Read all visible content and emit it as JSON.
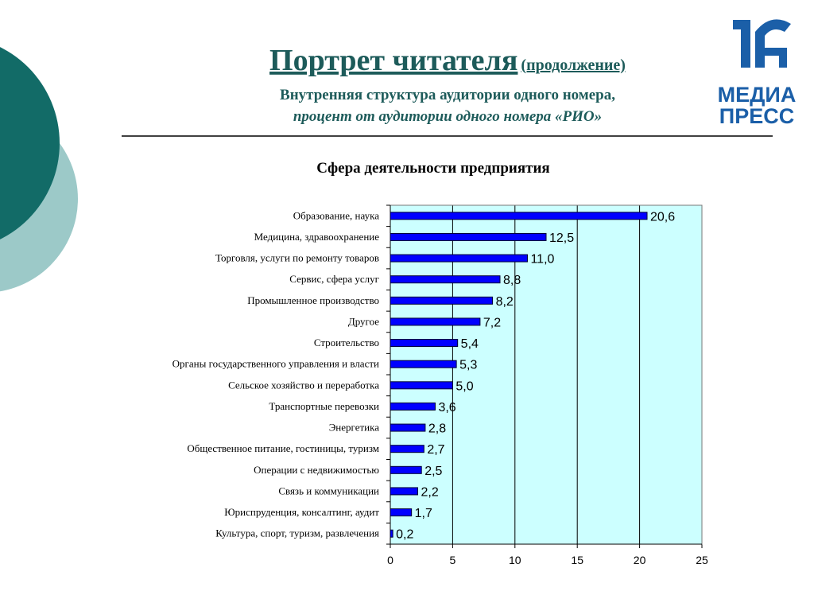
{
  "header": {
    "title": "Портрет читателя",
    "title_note": "(продолжение)",
    "subtitle": "Внутренняя структура аудитории одного номера,",
    "subtitle_2": "процент от аудитории одного номера «РИО»"
  },
  "logo": {
    "line_1": "МЕДИА",
    "line_2": "ПРЕСС"
  },
  "chart_data": {
    "type": "bar",
    "orientation": "horizontal",
    "title": "Сфера деятельности предприятия",
    "categories": [
      "Образование, наука",
      "Медицина, здравоохранение",
      "Торговля, услуги по ремонту товаров",
      "Сервис, сфера услуг",
      "Промышленное производство",
      "Другое",
      "Строительство",
      "Органы государственного управления и власти",
      "Сельское хозяйство и переработка",
      "Транспортные перевозки",
      "Энергетика",
      "Общественное питание, гостиницы, туризм",
      "Операции с недвижимостью",
      "Связь и коммуникации",
      "Юриспруденция, консалтинг, аудит",
      "Культура, спорт, туризм, развлечения"
    ],
    "values": [
      20.6,
      12.5,
      11.0,
      8.8,
      8.2,
      7.2,
      5.4,
      5.3,
      5.0,
      3.6,
      2.8,
      2.7,
      2.5,
      2.2,
      1.7,
      0.2
    ],
    "value_labels": [
      "20,6",
      "12,5",
      "11,0",
      "8,8",
      "8,2",
      "7,2",
      "5,4",
      "5,3",
      "5,0",
      "3,6",
      "2,8",
      "2,7",
      "2,5",
      "2,2",
      "1,7",
      "0,2"
    ],
    "color": "#0000ff",
    "xlim": [
      0,
      25
    ],
    "xticks": [
      0,
      5,
      10,
      15,
      20,
      25
    ],
    "grid": true
  }
}
